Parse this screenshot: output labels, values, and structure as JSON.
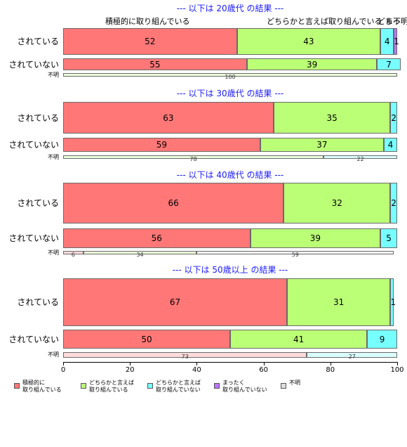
{
  "chart_data": {
    "type": "bar",
    "orientation": "horizontal",
    "stacked": true,
    "xlim": [
      0,
      100
    ],
    "x_ticks": [
      "0",
      "20",
      "40",
      "60",
      "80",
      "100"
    ],
    "top_column_labels": [
      "積極的に取り組んでいる",
      "どちらかと言えば取り組んでいる",
      "どち",
      "まっ",
      "不明"
    ],
    "legend": [
      {
        "label": "積極的に\n取り組んでいる",
        "color": "#ff7777"
      },
      {
        "label": "どちらかと言えば\n取り組んでいる",
        "color": "#bbff77"
      },
      {
        "label": "どちらかと言えば\n取り組んでいない",
        "color": "#77ffff"
      },
      {
        "label": "まったく\n取り組んでいない",
        "color": "#bb77ff"
      },
      {
        "label": "不明",
        "color": "#dddddd"
      }
    ],
    "groups": [
      {
        "title": "--- 以下は 20歳代 の結果 ---",
        "rows": [
          {
            "label": "されている",
            "values": [
              52,
              43,
              4,
              1,
              0
            ],
            "labels": [
              "52",
              "43",
              "4",
              "1",
              ""
            ]
          },
          {
            "label": "されていない",
            "values": [
              55,
              39,
              7,
              0,
              0
            ],
            "labels": [
              "55",
              "39",
              "7",
              "",
              ""
            ]
          },
          {
            "label": "不明",
            "values": [
              0,
              100,
              0,
              0,
              0
            ],
            "labels": [
              "",
              "100",
              "",
              "",
              ""
            ]
          }
        ]
      },
      {
        "title": "--- 以下は 30歳代 の結果 ---",
        "rows": [
          {
            "label": "されている",
            "values": [
              63,
              35,
              2,
              0,
              0
            ],
            "labels": [
              "63",
              "35",
              "2",
              "",
              ""
            ]
          },
          {
            "label": "されていない",
            "values": [
              59,
              37,
              4,
              0,
              0
            ],
            "labels": [
              "59",
              "37",
              "4",
              "",
              ""
            ]
          },
          {
            "label": "不明",
            "values": [
              0,
              78,
              22,
              0,
              0
            ],
            "labels": [
              "",
              "78",
              "22",
              "",
              ""
            ]
          }
        ]
      },
      {
        "title": "--- 以下は 40歳代 の結果 ---",
        "rows": [
          {
            "label": "されている",
            "values": [
              66,
              32,
              2,
              0,
              0
            ],
            "labels": [
              "66",
              "32",
              "2",
              "",
              ""
            ]
          },
          {
            "label": "されていない",
            "values": [
              56,
              39,
              5,
              0,
              0
            ],
            "labels": [
              "56",
              "39",
              "5",
              "",
              ""
            ]
          },
          {
            "label": "不明",
            "values": [
              6,
              34,
              0,
              0,
              59
            ],
            "labels": [
              "6",
              "34",
              "",
              "",
              "59"
            ]
          }
        ]
      },
      {
        "title": "--- 以下は 50歳以上 の結果 ---",
        "rows": [
          {
            "label": "されている",
            "values": [
              67,
              31,
              1,
              0,
              0
            ],
            "labels": [
              "67",
              "31",
              "1",
              "",
              ""
            ]
          },
          {
            "label": "されていない",
            "values": [
              50,
              41,
              9,
              0,
              0
            ],
            "labels": [
              "50",
              "41",
              "9",
              "",
              ""
            ]
          },
          {
            "label": "不明",
            "values": [
              73,
              0,
              27,
              0,
              0
            ],
            "labels": [
              "73",
              "",
              "27",
              "",
              ""
            ]
          }
        ]
      }
    ]
  }
}
